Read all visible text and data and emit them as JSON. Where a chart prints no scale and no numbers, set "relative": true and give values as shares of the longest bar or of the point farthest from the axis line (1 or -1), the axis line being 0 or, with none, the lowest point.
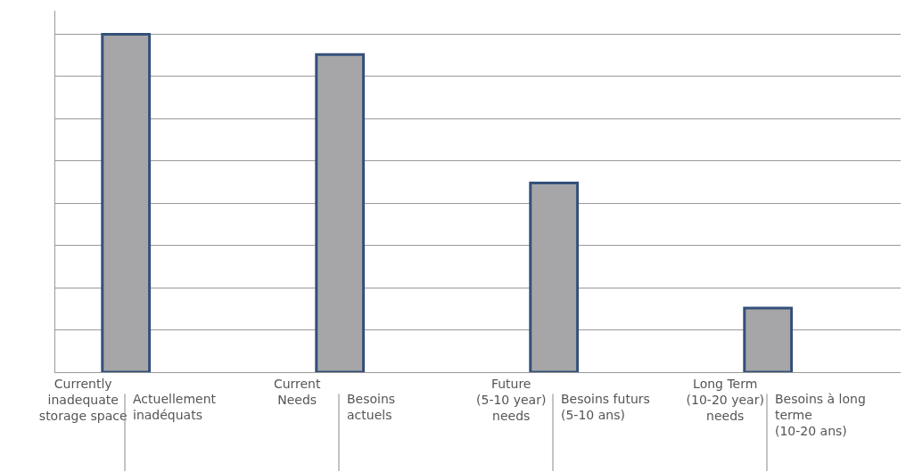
{
  "chart_data": {
    "type": "bar",
    "relative": true,
    "categories": [
      "Currently\ninadequate\nstorage space",
      "Current\nNeeds",
      "Future\n(5-10 year)\nneeds",
      "Long Term\n(10-20 year)\nneeds"
    ],
    "values": [
      1,
      0.94,
      0.56,
      0.19
    ],
    "color": "#a6a6a8",
    "grid": "y",
    "annotations": [
      "Actuellement\ninadéquats",
      "Besoins\nactuels",
      "Besoins futurs\n(5-10 ans)",
      "Besoins à long\nterme\n(10-20 ans)"
    ]
  }
}
